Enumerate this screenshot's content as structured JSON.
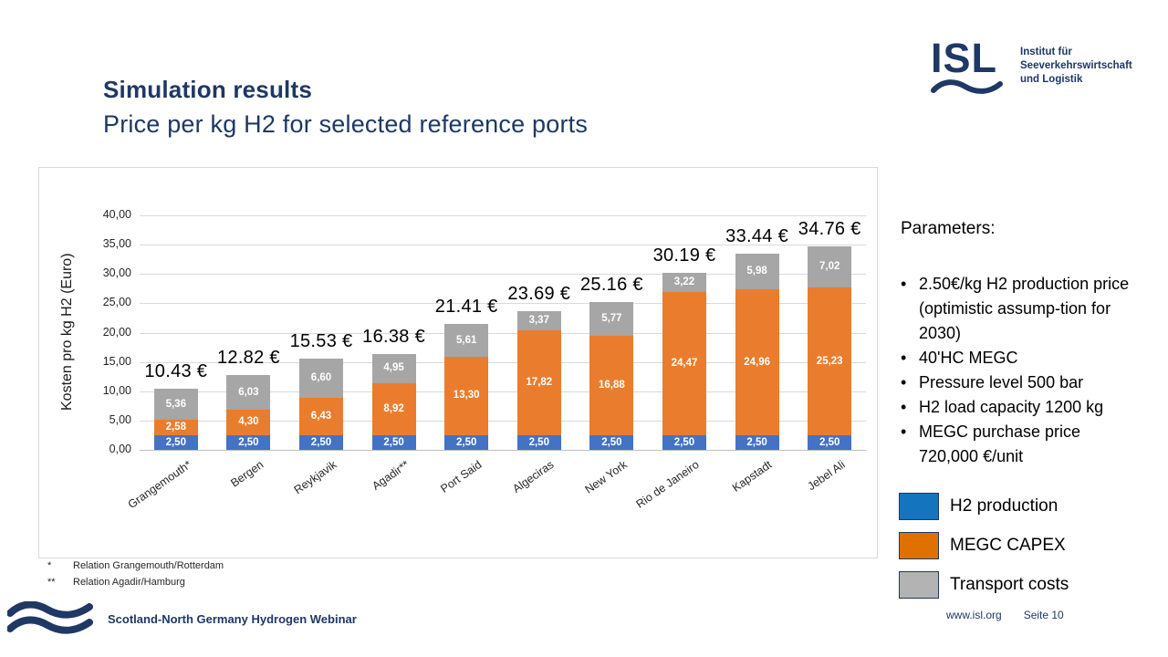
{
  "slide": {
    "title": "Simulation results",
    "subtitle": "Price per kg H2 for selected reference ports"
  },
  "logo": {
    "abbr": "ISL",
    "org_lines": [
      "Institut für",
      "Seeverkehrswirtschaft",
      "und Logistik"
    ]
  },
  "chart_data": {
    "type": "bar",
    "stacked": true,
    "title": "",
    "xlabel": "",
    "ylabel": "Kosten pro kg H2 (Euro)",
    "ylim": [
      0,
      40
    ],
    "ytick_step": 5,
    "ytick_labels": [
      "0,00",
      "5,00",
      "10,00",
      "15,00",
      "20,00",
      "25,00",
      "30,00",
      "35,00",
      "40,00"
    ],
    "grid": true,
    "decimal_format": "comma",
    "categories": [
      "Grangemouth*",
      "Bergen",
      "Reykjavik",
      "Agadir**",
      "Port Said",
      "Algeciras",
      "New York",
      "Rio de Janeiro",
      "Kapstadt",
      "Jebel Ali"
    ],
    "series": [
      {
        "name": "H2 production",
        "color": "#4472C4",
        "values": [
          2.5,
          2.5,
          2.5,
          2.5,
          2.5,
          2.5,
          2.5,
          2.5,
          2.5,
          2.5
        ]
      },
      {
        "name": "MEGC CAPEX",
        "color": "#E97D2D",
        "values": [
          2.58,
          4.3,
          6.43,
          8.92,
          13.3,
          17.82,
          16.88,
          24.47,
          24.96,
          25.23
        ]
      },
      {
        "name": "Transport costs",
        "color": "#A6A6A6",
        "values": [
          5.36,
          6.03,
          6.6,
          4.95,
          5.61,
          3.37,
          5.77,
          3.22,
          5.98,
          7.02
        ]
      }
    ],
    "totals": [
      "10.43 €",
      "12.82 €",
      "15.53 €",
      "16.38 €",
      "21.41 €",
      "23.69 €",
      "25.16 €",
      "30.19 €",
      "33.44 €",
      "34.76 €"
    ]
  },
  "parameters": {
    "heading": "Parameters:",
    "items": [
      "2.50€/kg H2 production price (optimistic assump-tion for 2030)",
      "40'HC MEGC",
      "Pressure level 500 bar",
      "H2 load capacity 1200 kg",
      "MEGC purchase price 720,000 €/unit"
    ]
  },
  "legend": {
    "items": [
      {
        "label": "H2 production",
        "color": "#1474BE"
      },
      {
        "label": "MEGC CAPEX",
        "color": "#E07000"
      },
      {
        "label": "Transport costs",
        "color": "#B3B3B3"
      }
    ]
  },
  "footnotes": [
    {
      "marker": "*",
      "text": "Relation Grangemouth/Rotterdam"
    },
    {
      "marker": "**",
      "text": "Relation Agadir/Hamburg"
    }
  ],
  "footer": {
    "event": "Scotland-North Germany Hydrogen Webinar",
    "website": "www.isl.org",
    "page": "Seite 10"
  },
  "colors": {
    "brand_navy": "#1F3864",
    "gridline": "#D9D9D9"
  }
}
